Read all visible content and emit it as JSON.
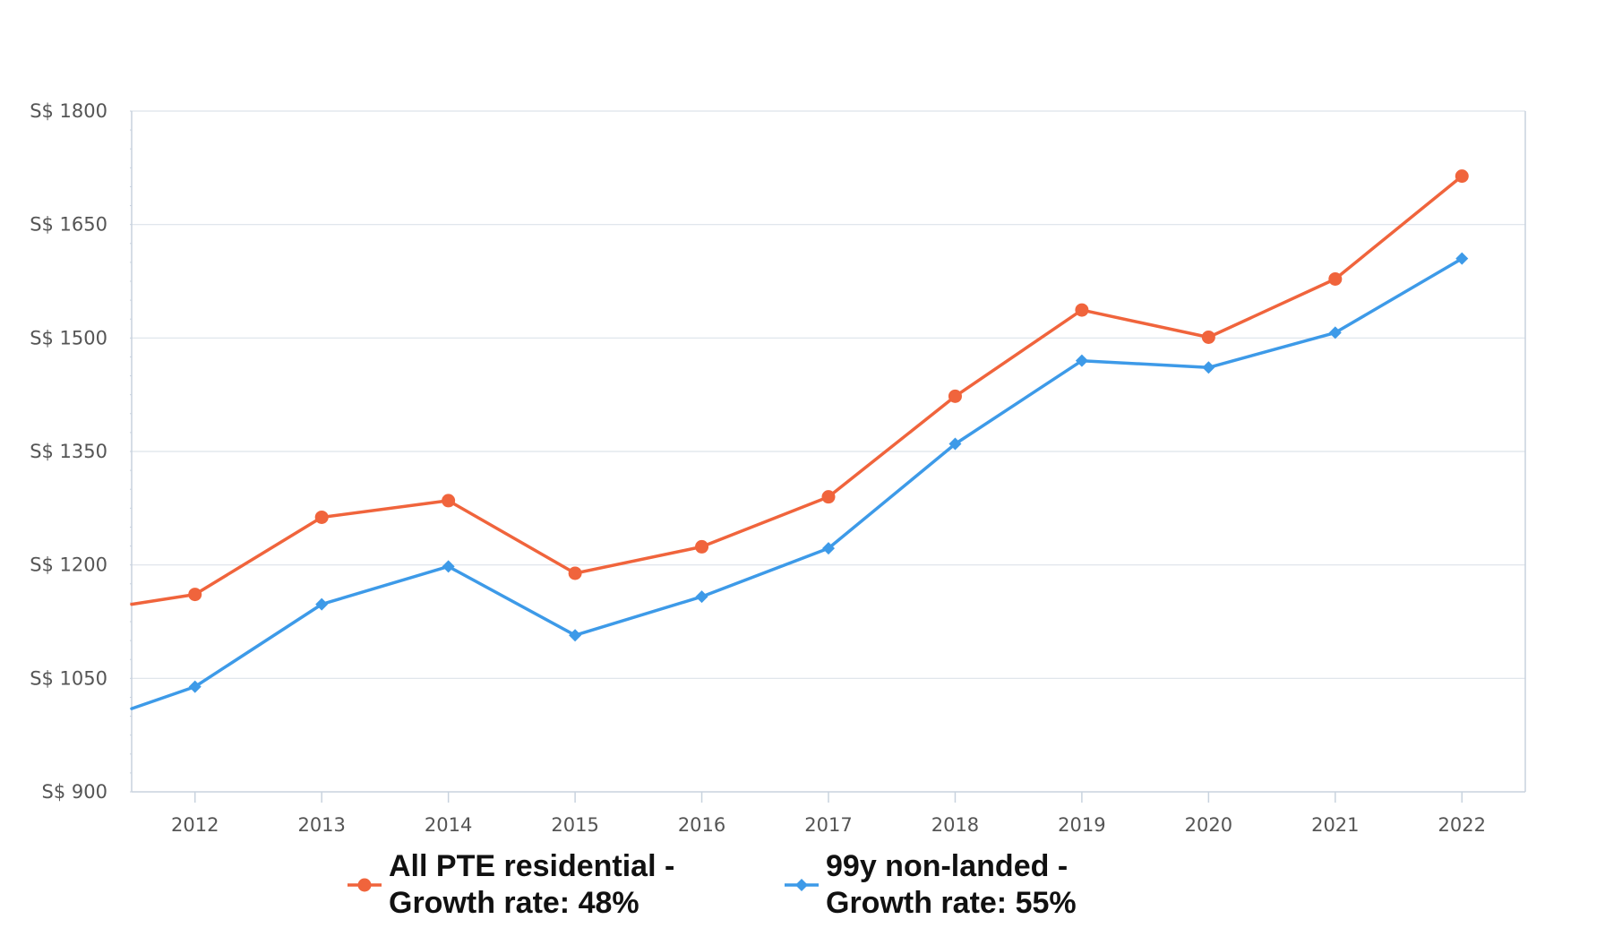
{
  "chart_data": {
    "type": "line",
    "title": "",
    "xlabel": "",
    "ylabel": "",
    "y_prefix": "S$ ",
    "ylim": [
      900,
      1800
    ],
    "yticks": [
      900,
      1050,
      1200,
      1350,
      1500,
      1650,
      1800
    ],
    "xlim": [
      2011.5,
      2022.5
    ],
    "x": [
      2012,
      2013,
      2014,
      2015,
      2016,
      2017,
      2018,
      2019,
      2020,
      2021,
      2022
    ],
    "grid": "horizontal",
    "legend_position": "bottom",
    "series": [
      {
        "name": "All PTE residential - Growth rate: 48%",
        "legend_lines": [
          "All PTE residential -",
          "Growth rate: 48%"
        ],
        "color": "#f0643c",
        "marker": "circle",
        "start_value": 1148,
        "values": [
          1161,
          1263,
          1285,
          1189,
          1224,
          1290,
          1423,
          1537,
          1501,
          1578,
          1714
        ]
      },
      {
        "name": "99y non-landed - Growth rate: 55%",
        "legend_lines": [
          "99y non-landed -",
          "Growth rate: 55%"
        ],
        "color": "#3d9ae8",
        "marker": "diamond",
        "start_value": 1010,
        "values": [
          1039,
          1148,
          1198,
          1107,
          1158,
          1222,
          1360,
          1470,
          1461,
          1507,
          1605
        ]
      }
    ]
  }
}
